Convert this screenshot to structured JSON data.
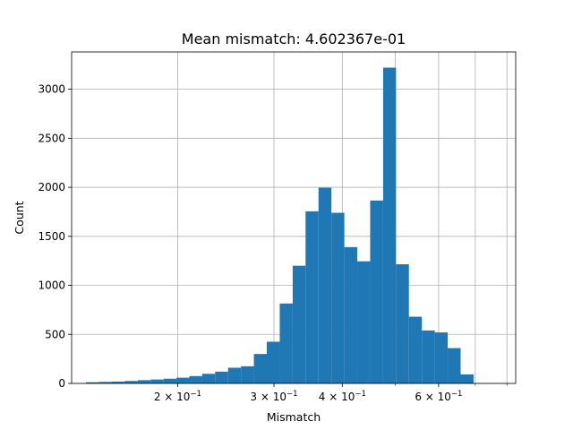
{
  "chart_data": {
    "type": "bar",
    "title": "Mean mismatch: 4.602367e-01",
    "xlabel": "Mismatch",
    "ylabel": "Count",
    "x_scale": "log",
    "grid": true,
    "bar_color": "#1f77b4",
    "xlim": [
      0.128,
      0.83
    ],
    "ylim": [
      0,
      3380
    ],
    "x_major_ticks": [
      {
        "value": 0.2,
        "mantissa": "2",
        "exp": "−1"
      },
      {
        "value": 0.3,
        "mantissa": "3",
        "exp": "−1"
      },
      {
        "value": 0.4,
        "mantissa": "4",
        "exp": "−1"
      },
      {
        "value": 0.6,
        "mantissa": "6",
        "exp": "−1"
      }
    ],
    "x_minor_ticks": [
      0.5,
      0.7,
      0.8
    ],
    "y_ticks": [
      {
        "value": 0,
        "label": "0"
      },
      {
        "value": 500,
        "label": "500"
      },
      {
        "value": 1000,
        "label": "1000"
      },
      {
        "value": 1500,
        "label": "1500"
      },
      {
        "value": 2000,
        "label": "2000"
      },
      {
        "value": 2500,
        "label": "2500"
      },
      {
        "value": 3000,
        "label": "3000"
      }
    ],
    "bins": [
      {
        "x0": 0.136,
        "x1": 0.1436,
        "count": 12
      },
      {
        "x0": 0.1436,
        "x1": 0.1516,
        "count": 15
      },
      {
        "x0": 0.1516,
        "x1": 0.1601,
        "count": 18
      },
      {
        "x0": 0.1601,
        "x1": 0.1691,
        "count": 25
      },
      {
        "x0": 0.1691,
        "x1": 0.1785,
        "count": 33
      },
      {
        "x0": 0.1785,
        "x1": 0.1885,
        "count": 40
      },
      {
        "x0": 0.1885,
        "x1": 0.199,
        "count": 48
      },
      {
        "x0": 0.199,
        "x1": 0.2101,
        "count": 58
      },
      {
        "x0": 0.2101,
        "x1": 0.2218,
        "count": 75
      },
      {
        "x0": 0.2218,
        "x1": 0.2342,
        "count": 98
      },
      {
        "x0": 0.2342,
        "x1": 0.2473,
        "count": 120
      },
      {
        "x0": 0.2473,
        "x1": 0.2611,
        "count": 160
      },
      {
        "x0": 0.2611,
        "x1": 0.2757,
        "count": 175
      },
      {
        "x0": 0.2757,
        "x1": 0.2911,
        "count": 300
      },
      {
        "x0": 0.2911,
        "x1": 0.3074,
        "count": 425
      },
      {
        "x0": 0.3074,
        "x1": 0.3246,
        "count": 815
      },
      {
        "x0": 0.3246,
        "x1": 0.3427,
        "count": 1200
      },
      {
        "x0": 0.3427,
        "x1": 0.3619,
        "count": 1755
      },
      {
        "x0": 0.3619,
        "x1": 0.3821,
        "count": 1995
      },
      {
        "x0": 0.3821,
        "x1": 0.4035,
        "count": 1740
      },
      {
        "x0": 0.4035,
        "x1": 0.426,
        "count": 1390
      },
      {
        "x0": 0.426,
        "x1": 0.4498,
        "count": 1245
      },
      {
        "x0": 0.4498,
        "x1": 0.475,
        "count": 1865
      },
      {
        "x0": 0.475,
        "x1": 0.5015,
        "count": 3220
      },
      {
        "x0": 0.5015,
        "x1": 0.5295,
        "count": 1215
      },
      {
        "x0": 0.5295,
        "x1": 0.5592,
        "count": 680
      },
      {
        "x0": 0.5592,
        "x1": 0.5904,
        "count": 540
      },
      {
        "x0": 0.5904,
        "x1": 0.6234,
        "count": 520
      },
      {
        "x0": 0.6234,
        "x1": 0.6583,
        "count": 360
      },
      {
        "x0": 0.6583,
        "x1": 0.6951,
        "count": 92
      }
    ]
  }
}
